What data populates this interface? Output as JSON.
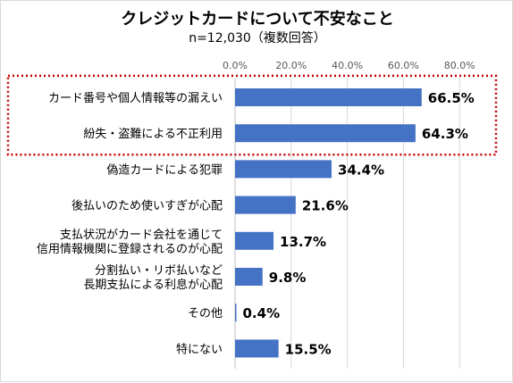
{
  "chart_data": {
    "type": "bar",
    "orientation": "horizontal",
    "title": "クレジットカードについて不安なこと",
    "subtitle": "n=12,030（複数回答）",
    "xlim": [
      0,
      80
    ],
    "x_ticks": [
      "0.0%",
      "20.0%",
      "40.0%",
      "60.0%",
      "80.0%"
    ],
    "grid": true,
    "bar_color": "#4472c4",
    "highlight_color": "#c00000",
    "highlight": "dotted box around the top 2 bars",
    "categories": [
      "カード番号や個人情報等の漏えい",
      "紛失・盗難による不正利用",
      "偽造カードによる犯罪",
      "後払いのため使いすぎが心配",
      "支払状況がカード会社を通じて\n信用情報機関に登録されるのが心配",
      "分割払い・リボ払いなど\n長期支払による利息が心配",
      "その他",
      "特にない"
    ],
    "values": [
      66.5,
      64.3,
      34.4,
      21.6,
      13.7,
      9.8,
      0.4,
      15.5
    ],
    "value_labels": [
      "66.5%",
      "64.3%",
      "34.4%",
      "21.6%",
      "13.7%",
      "9.8%",
      "0.4%",
      "15.5%"
    ]
  }
}
